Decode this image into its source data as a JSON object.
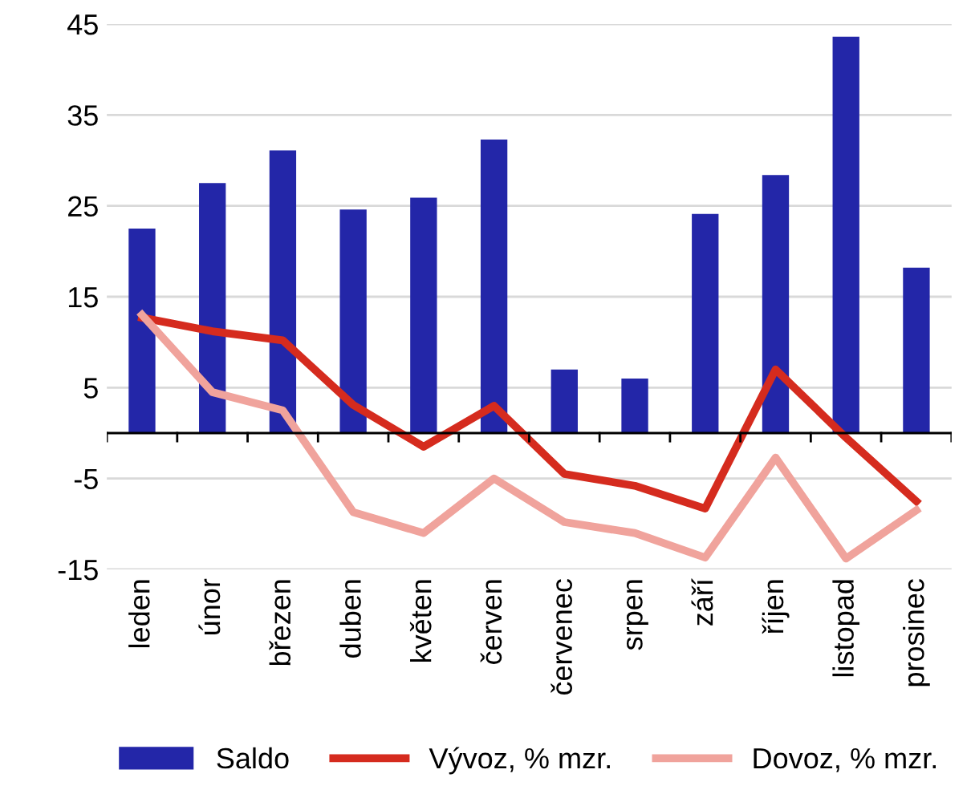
{
  "chart_data": {
    "type": "bar",
    "categories": [
      "leden",
      "únor",
      "březen",
      "duben",
      "květen",
      "červen",
      "červenec",
      "srpen",
      "září",
      "říjen",
      "listopad",
      "prosinec"
    ],
    "series": [
      {
        "name": "Saldo",
        "color": "#2326a8",
        "values": [
          22.5,
          27.5,
          31.1,
          24.6,
          25.9,
          32.3,
          7.0,
          6.0,
          24.1,
          28.4,
          43.6,
          18.2
        ]
      },
      {
        "name": "Vývoz, % mzr.",
        "type": "line",
        "color": "#d52b1e",
        "values": [
          12.7,
          11.2,
          10.2,
          3.1,
          -1.5,
          3.0,
          -4.5,
          -5.8,
          -8.3,
          7.0,
          -0.5,
          -7.5
        ]
      },
      {
        "name": "Dovoz, % mzr.",
        "type": "line",
        "color": "#f0a39c",
        "values": [
          13.0,
          4.5,
          2.5,
          -8.7,
          -11.0,
          -5.0,
          -9.8,
          -11.0,
          -13.7,
          -2.7,
          -13.8,
          -8.5
        ]
      }
    ],
    "ylim": [
      -15,
      45
    ],
    "yticks": [
      -15,
      -5,
      5,
      15,
      25,
      35,
      45
    ],
    "grid": "y",
    "legend": "bottom"
  }
}
